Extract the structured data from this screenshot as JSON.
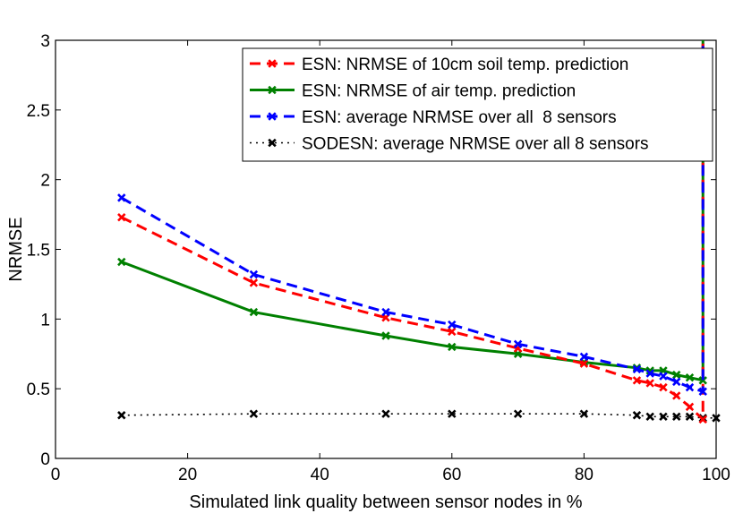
{
  "chart_data": {
    "type": "line",
    "title": "",
    "xlabel": "Simulated link quality between sensor nodes in %",
    "ylabel": "NRMSE",
    "xlim": [
      0,
      100
    ],
    "ylim": [
      0,
      3
    ],
    "xticks": [
      0,
      20,
      40,
      60,
      80,
      100
    ],
    "yticks": [
      0,
      0.5,
      1,
      1.5,
      2,
      2.5,
      3
    ],
    "xtick_labels": [
      "0",
      "20",
      "40",
      "60",
      "80",
      "100"
    ],
    "ytick_labels": [
      "0",
      "0.5",
      "1",
      "1.5",
      "2",
      "2.5",
      "3"
    ],
    "grid": false,
    "legend_position": "top-right",
    "series": [
      {
        "name": "ESN: NRMSE of 10cm soil temp. prediction",
        "color": "#ff0000",
        "style": "dashed",
        "marker": "x",
        "x": [
          10,
          30,
          50,
          60,
          70,
          80,
          88,
          90,
          92,
          94,
          96,
          98,
          98
        ],
        "y": [
          1.73,
          1.26,
          1.01,
          0.91,
          0.79,
          0.68,
          0.56,
          0.54,
          0.51,
          0.45,
          0.37,
          0.28,
          3.0
        ]
      },
      {
        "name": "ESN: NRMSE of air temp. prediction",
        "color": "#008000",
        "style": "solid",
        "marker": "x",
        "x": [
          10,
          30,
          50,
          60,
          70,
          80,
          88,
          90,
          92,
          94,
          96,
          98,
          98
        ],
        "y": [
          1.41,
          1.05,
          0.88,
          0.8,
          0.75,
          0.69,
          0.65,
          0.63,
          0.63,
          0.6,
          0.58,
          0.56,
          3.0
        ]
      },
      {
        "name": "ESN: average NRMSE over all  8 sensors",
        "color": "#0000ff",
        "style": "dashed",
        "marker": "x",
        "x": [
          10,
          30,
          50,
          60,
          70,
          80,
          88,
          90,
          92,
          94,
          96,
          98,
          98
        ],
        "y": [
          1.87,
          1.32,
          1.05,
          0.96,
          0.82,
          0.73,
          0.64,
          0.61,
          0.59,
          0.55,
          0.51,
          0.48,
          3.0
        ]
      },
      {
        "name": "SODESN: average NRMSE over all 8 sensors",
        "color": "#000000",
        "style": "dotted",
        "marker": "x",
        "x": [
          10,
          30,
          50,
          60,
          70,
          80,
          88,
          90,
          92,
          94,
          96,
          98,
          100
        ],
        "y": [
          0.31,
          0.32,
          0.32,
          0.32,
          0.32,
          0.32,
          0.31,
          0.3,
          0.3,
          0.3,
          0.3,
          0.29,
          0.29
        ]
      }
    ]
  }
}
